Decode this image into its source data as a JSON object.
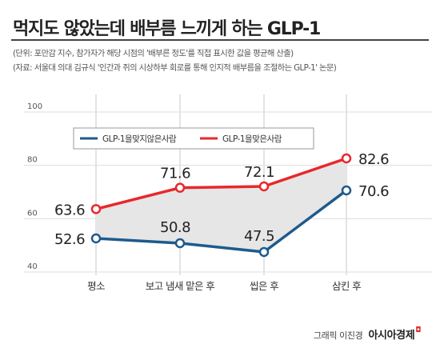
{
  "header": {
    "title": "먹지도 않았는데 배부름 느끼게 하는 GLP-1",
    "note_unit": "(단위: 포만감 지수, 참가자가 해당 시점의 '배부른 정도'를 직접 표시한 값을 평균해 산출)",
    "note_source": "(자료: 서울대 의대 김규식 '인간과 쥐의 시상하부 회로를 통해 인지적 배부름을 조절하는 GLP-1' 논문)"
  },
  "chart_data": {
    "type": "line",
    "categories": [
      "평소",
      "보고 냄새 맡은 후",
      "씹은 후",
      "삼킨 후"
    ],
    "series": [
      {
        "name": "GLP-1을맞지않은사람",
        "values": [
          52.6,
          50.8,
          47.5,
          70.6
        ],
        "color": "#1f5a8c",
        "labels": [
          "52.6",
          "50.8",
          "47.5",
          "70.6"
        ]
      },
      {
        "name": "GLP-1을맞은사람",
        "values": [
          63.6,
          71.6,
          72.1,
          82.6
        ],
        "color": "#e8282b",
        "labels": [
          "63.6",
          "71.6",
          "72.1",
          "82.6"
        ]
      }
    ],
    "ylim": [
      40,
      100
    ],
    "yticks": [
      "40",
      "60",
      "80",
      "100"
    ],
    "grid": true,
    "legend_position": "top-left",
    "xlabel": "",
    "ylabel": ""
  },
  "footer": {
    "credit": "그래픽 이진경",
    "brand": "아시아경제"
  }
}
